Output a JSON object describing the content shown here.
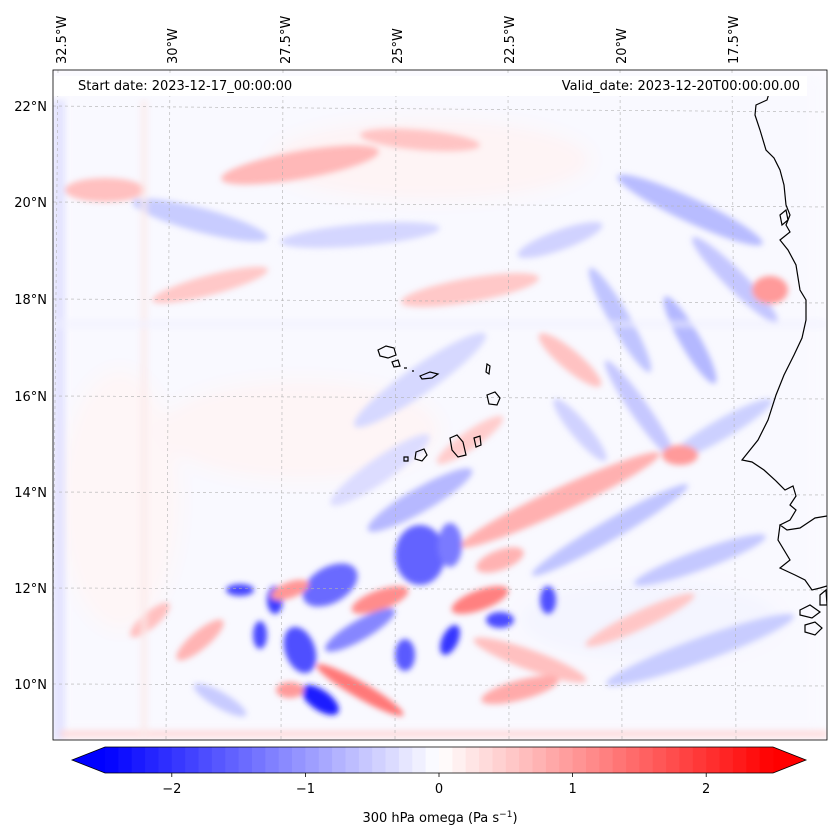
{
  "map": {
    "start_date": "Start date: 2023-12-17_00:00:00",
    "valid_date": "Valid_date: 2023-12-20T00:00:00.00",
    "lon_labels": [
      "32.5°W",
      "30°W",
      "27.5°W",
      "25°W",
      "22.5°W",
      "20°W",
      "17.5°W"
    ],
    "lat_labels": [
      "22°N",
      "20°N",
      "18°N",
      "16°N",
      "14°N",
      "12°N",
      "10°N"
    ],
    "lon_range": [
      -32.7,
      -15.6
    ],
    "lat_range": [
      8.9,
      22.8
    ],
    "field": "300 hPa omega",
    "colormap": "bwr",
    "positive_color": "#ff0000",
    "negative_color": "#0000ff"
  },
  "colorbar": {
    "label_prefix": "300 hPa omega (Pa s",
    "label_exponent": "−1",
    "label_suffix": ")",
    "ticks": [
      "−2",
      "−1",
      "0",
      "1",
      "2"
    ],
    "tick_values": [
      -2,
      -1,
      0,
      1,
      2
    ],
    "range": [
      -2.5,
      2.5
    ]
  }
}
